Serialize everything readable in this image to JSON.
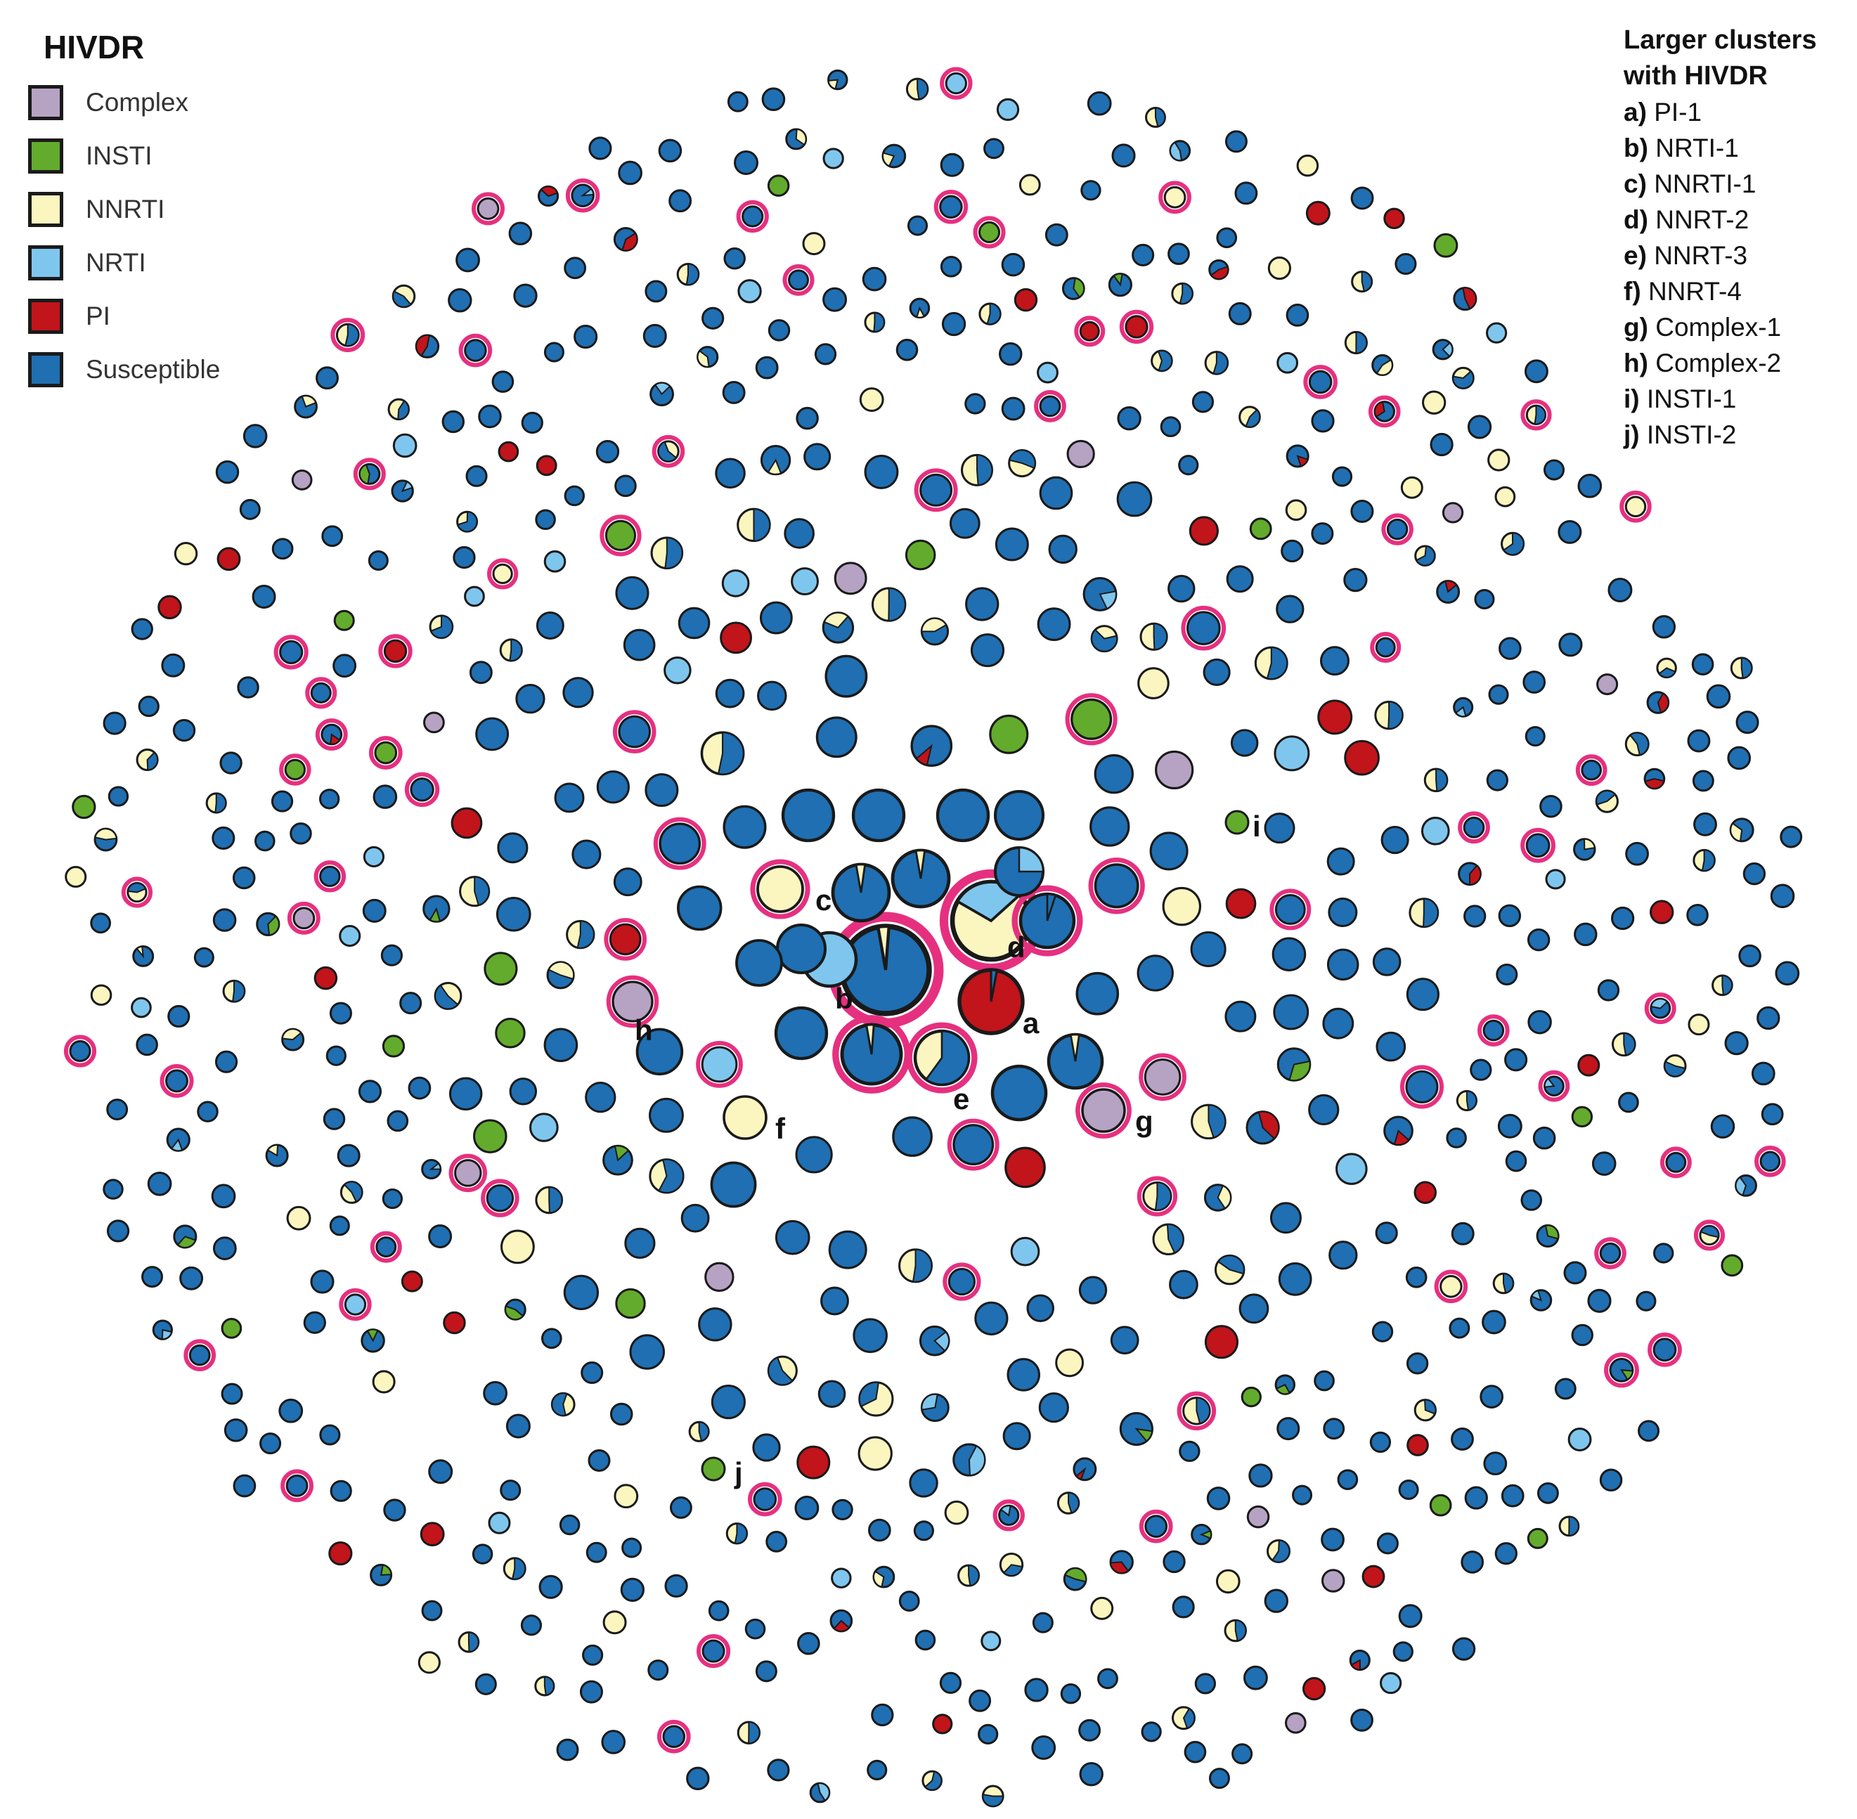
{
  "legend": {
    "title": "HIVDR",
    "items": [
      {
        "label": "Complex",
        "color": "#b6a3c4"
      },
      {
        "label": "INSTI",
        "color": "#63ab2c"
      },
      {
        "label": "NNRTI",
        "color": "#fbf6c0"
      },
      {
        "label": "NRTI",
        "color": "#7fc6ee"
      },
      {
        "label": "PI",
        "color": "#c1141b"
      },
      {
        "label": "Susceptible",
        "color": "#1f6fb2"
      }
    ]
  },
  "clusters_panel": {
    "title_line1": "Larger clusters",
    "title_line2": "with HIVDR",
    "items": [
      {
        "key": "a)",
        "label": "PI-1"
      },
      {
        "key": "b)",
        "label": "NRTI-1"
      },
      {
        "key": "c)",
        "label": "NNRTI-1"
      },
      {
        "key": "d)",
        "label": "NNRT-2"
      },
      {
        "key": "e)",
        "label": "NNRT-3"
      },
      {
        "key": "f)",
        "label": "NNRT-4"
      },
      {
        "key": "g)",
        "label": "Complex-1"
      },
      {
        "key": "h)",
        "label": "Complex-2"
      },
      {
        "key": "i)",
        "label": "INSTI-1"
      },
      {
        "key": "j)",
        "label": "INSTI-2"
      }
    ]
  },
  "colors": {
    "susceptible": "#1f6fb2",
    "nnrti": "#fbf6c0",
    "nrti": "#7fc6ee",
    "pi": "#c1141b",
    "insti": "#63ab2c",
    "complex": "#b6a3c4",
    "ring": "#e6307f",
    "outline": "#1a1a1a"
  },
  "node_labels": [
    "a",
    "b",
    "c",
    "d",
    "e",
    "f",
    "g",
    "h",
    "i",
    "j"
  ]
}
